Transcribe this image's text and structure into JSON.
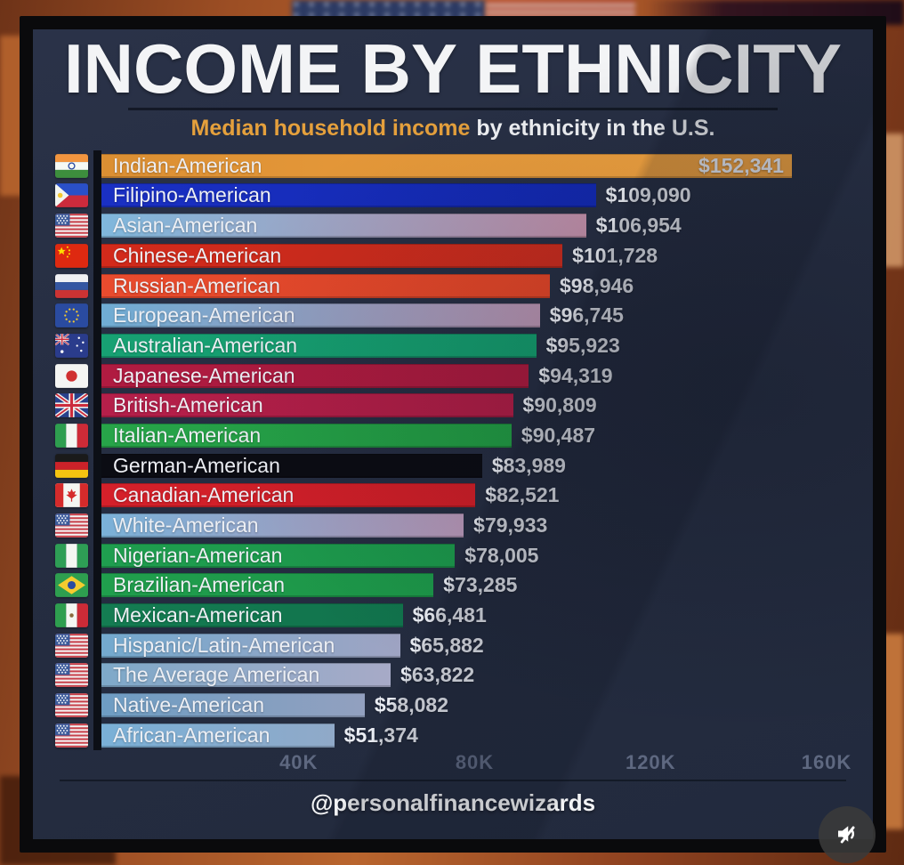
{
  "header": {
    "title": "INCOME BY ETHNICITY",
    "subtitle_highlight": "Median household income",
    "subtitle_rest": " by ethnicity in the U.S."
  },
  "footer": {
    "handle": "@personalfinancewizards"
  },
  "media": {
    "mute_icon": "speaker-muted"
  },
  "colors": {
    "card_bg": "#252D41",
    "frame": "#0A0A0C",
    "accent_orange": "#E5A03C",
    "axis_label": "#5E6880",
    "label_text": "#EDEFF4",
    "value_text": "#E9ECF3",
    "axis_line": "#0C0F16"
  },
  "chart_data": {
    "type": "bar",
    "orientation": "horizontal",
    "title": "INCOME BY ETHNICITY",
    "subtitle": "Median household income by ethnicity in the U.S.",
    "xlabel": "",
    "ylabel": "",
    "xlim": [
      0,
      160000
    ],
    "grid": false,
    "x_ticks": [
      {
        "label": "40K",
        "value": 40000
      },
      {
        "label": "80K",
        "value": 80000
      },
      {
        "label": "120K",
        "value": 120000
      },
      {
        "label": "160K",
        "value": 160000
      }
    ],
    "bars": [
      {
        "label": "Indian-American",
        "value": 152341,
        "display_value": "$152,341",
        "flag": "india",
        "color_start": "#DB8F33",
        "color_end": "#F3A542",
        "value_inside": true
      },
      {
        "label": "Filipino-American",
        "value": 109090,
        "display_value": "$109,090",
        "flag": "philippines",
        "color_start": "#1A30C4",
        "color_end": "#1228AE",
        "value_inside": false
      },
      {
        "label": "Asian-American",
        "value": 106954,
        "display_value": "$106,954",
        "flag": "usa",
        "color_start": "#7FB7DC",
        "color_end": "#C18FA9",
        "value_inside": false
      },
      {
        "label": "Chinese-American",
        "value": 101728,
        "display_value": "$101,728",
        "flag": "china",
        "color_start": "#D22A1B",
        "color_end": "#C62C1E",
        "value_inside": false
      },
      {
        "label": "Russian-American",
        "value": 98946,
        "display_value": "$98,946",
        "flag": "russia",
        "color_start": "#E84B2E",
        "color_end": "#E04527",
        "value_inside": false
      },
      {
        "label": "European-American",
        "value": 96745,
        "display_value": "$96,745",
        "flag": "eu",
        "color_start": "#6FACD4",
        "color_end": "#B692AF",
        "value_inside": false
      },
      {
        "label": "Australian-American",
        "value": 95923,
        "display_value": "$95,923",
        "flag": "australia",
        "color_start": "#17A173",
        "color_end": "#149A6C",
        "value_inside": false
      },
      {
        "label": "Japanese-American",
        "value": 94319,
        "display_value": "$94,319",
        "flag": "japan",
        "color_start": "#B01B41",
        "color_end": "#A81A3E",
        "value_inside": false
      },
      {
        "label": "British-American",
        "value": 90809,
        "display_value": "$90,809",
        "flag": "uk",
        "color_start": "#B51F4A",
        "color_end": "#AC1D45",
        "value_inside": false
      },
      {
        "label": "Italian-American",
        "value": 90487,
        "display_value": "$90,487",
        "flag": "italy",
        "color_start": "#27A449",
        "color_end": "#219A43",
        "value_inside": false
      },
      {
        "label": "German-American",
        "value": 83989,
        "display_value": "$83,989",
        "flag": "germany",
        "color_start": "#0B0C13",
        "color_end": "#0B0C13",
        "value_inside": false
      },
      {
        "label": "Canadian-American",
        "value": 82521,
        "display_value": "$82,521",
        "flag": "canada",
        "color_start": "#D4202A",
        "color_end": "#CC1E27",
        "value_inside": false
      },
      {
        "label": "White-American",
        "value": 79933,
        "display_value": "$79,933",
        "flag": "usa",
        "color_start": "#7AB1D8",
        "color_end": "#B495B5",
        "value_inside": false
      },
      {
        "label": "Nigerian-American",
        "value": 78005,
        "display_value": "$78,005",
        "flag": "nigeria",
        "color_start": "#1F9E4F",
        "color_end": "#1B954A",
        "value_inside": false
      },
      {
        "label": "Brazilian-American",
        "value": 73285,
        "display_value": "$73,285",
        "flag": "brazil",
        "color_start": "#209E4D",
        "color_end": "#1C9548",
        "value_inside": false
      },
      {
        "label": "Mexican-American",
        "value": 66481,
        "display_value": "$66,481",
        "flag": "mexico",
        "color_start": "#147C52",
        "color_end": "#11734C",
        "value_inside": false
      },
      {
        "label": "Hispanic/Latin-American",
        "value": 65882,
        "display_value": "$65,882",
        "flag": "usa",
        "color_start": "#73A9CE",
        "color_end": "#9FA4C3",
        "value_inside": false
      },
      {
        "label": "The Average American",
        "value": 63822,
        "display_value": "$63,822",
        "flag": "usa",
        "color_start": "#7EA9C9",
        "color_end": "#A7AAC7",
        "value_inside": false
      },
      {
        "label": "Native-American",
        "value": 58082,
        "display_value": "$58,082",
        "flag": "usa",
        "color_start": "#6E9DC3",
        "color_end": "#92A0BF",
        "value_inside": false
      },
      {
        "label": "African-American",
        "value": 51374,
        "display_value": "$51,374",
        "flag": "usa",
        "color_start": "#7AB0D7",
        "color_end": "#90A9C8",
        "value_inside": false
      }
    ]
  }
}
